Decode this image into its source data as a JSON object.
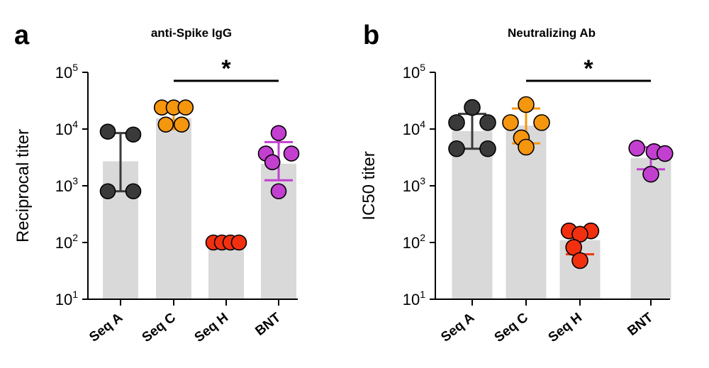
{
  "chart_data": [
    {
      "type": "bar",
      "panel": "a",
      "title": "anti-Spike IgG",
      "ylabel": "Reciprocal titer",
      "xlabel": "",
      "yscale": "log",
      "ylim": [
        10,
        100000
      ],
      "yticks": [
        {
          "base": "10",
          "exp": "1"
        },
        {
          "base": "10",
          "exp": "2"
        },
        {
          "base": "10",
          "exp": "3"
        },
        {
          "base": "10",
          "exp": "4"
        },
        {
          "base": "10",
          "exp": "5"
        }
      ],
      "categories": [
        "Seq A",
        "Seq C",
        "Seq H",
        "BNT"
      ],
      "colors": [
        "#3a3a3a",
        "#f5960f",
        "#f2300f",
        "#c23fd0"
      ],
      "bar_color": "#d9d9d9",
      "values": [
        2700,
        15500,
        100,
        2450
      ],
      "error_low": [
        800,
        10000,
        100,
        1250
      ],
      "error_high": [
        8500,
        24000,
        100,
        5900
      ],
      "points": [
        [
          [
            9000,
            -0.45
          ],
          [
            8000,
            0.45
          ],
          [
            800,
            -0.45
          ],
          [
            800,
            0.45
          ]
        ],
        [
          [
            24000,
            -0.42
          ],
          [
            24000,
            0
          ],
          [
            24000,
            0.42
          ],
          [
            12000,
            -0.28
          ],
          [
            12000,
            0.28
          ]
        ],
        [
          [
            100,
            -0.45
          ],
          [
            100,
            -0.15
          ],
          [
            100,
            0.15
          ],
          [
            100,
            0.45
          ]
        ],
        [
          [
            8500,
            0
          ],
          [
            3700,
            -0.45
          ],
          [
            3700,
            0.45
          ],
          [
            2600,
            -0.22
          ],
          [
            800,
            0
          ]
        ]
      ],
      "significance": {
        "from": "Seq C",
        "to": "BNT",
        "label": "*"
      }
    },
    {
      "type": "bar",
      "panel": "b",
      "title": "Neutralizing Ab",
      "ylabel": "IC50 titer",
      "xlabel": "",
      "yscale": "log",
      "ylim": [
        10,
        100000
      ],
      "yticks": [
        {
          "base": "10",
          "exp": "1"
        },
        {
          "base": "10",
          "exp": "2"
        },
        {
          "base": "10",
          "exp": "3"
        },
        {
          "base": "10",
          "exp": "4"
        },
        {
          "base": "10",
          "exp": "5"
        }
      ],
      "categories": [
        "Seq A",
        "Seq C",
        "Seq H",
        "BNT"
      ],
      "colors": [
        "#3a3a3a",
        "#f5960f",
        "#f2300f",
        "#c23fd0"
      ],
      "bar_color": "#d9d9d9",
      "values": [
        9200,
        11500,
        110,
        3100
      ],
      "error_low": [
        4500,
        5600,
        62,
        1950
      ],
      "error_high": [
        18500,
        23000,
        175,
        4800
      ],
      "points": [
        [
          [
            24000,
            0
          ],
          [
            13000,
            -0.5
          ],
          [
            13000,
            0.5
          ],
          [
            4500,
            -0.5
          ],
          [
            4500,
            0.5
          ]
        ],
        [
          [
            27000,
            0
          ],
          [
            13000,
            -0.5
          ],
          [
            13000,
            0.5
          ],
          [
            7000,
            -0.15
          ],
          [
            4800,
            0
          ]
        ],
        [
          [
            160,
            -0.35
          ],
          [
            160,
            0.35
          ],
          [
            140,
            0
          ],
          [
            82,
            -0.2
          ],
          [
            48,
            0
          ]
        ],
        [
          [
            4600,
            -0.45
          ],
          [
            4000,
            0.1
          ],
          [
            3700,
            0.45
          ],
          [
            1600,
            0
          ]
        ]
      ],
      "significance": {
        "from": "Seq C",
        "to": "BNT",
        "label": "*"
      }
    }
  ]
}
